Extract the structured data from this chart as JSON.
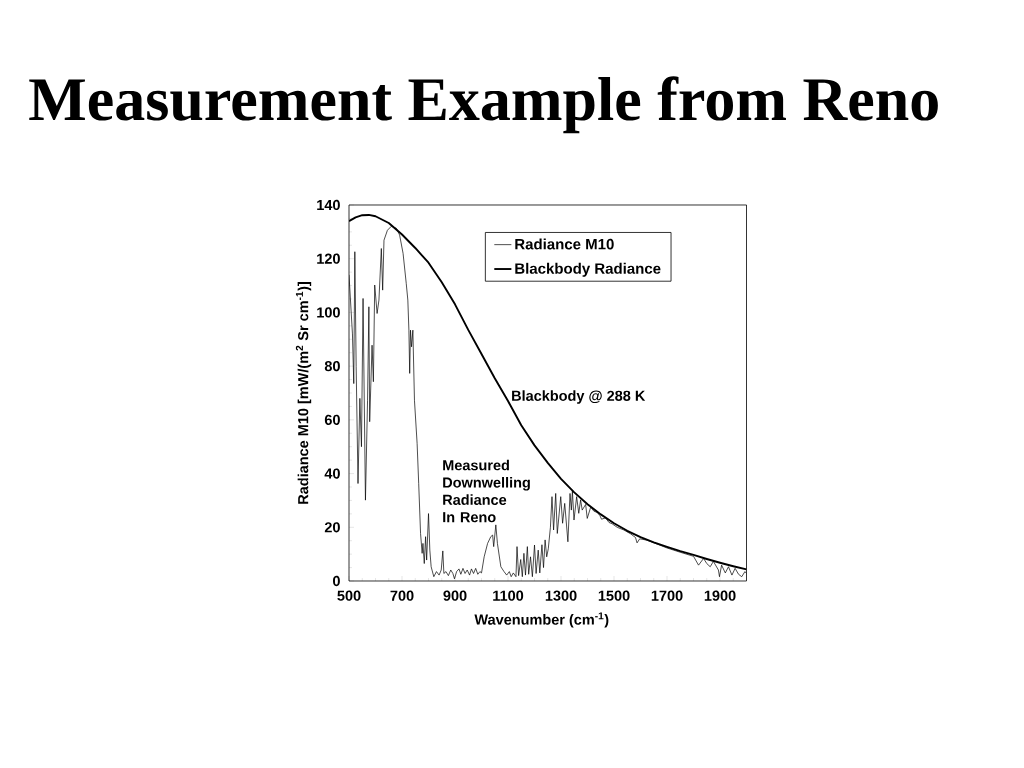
{
  "chart_data": {
    "type": "line",
    "title": "Measurement Example from Reno",
    "xlabel": "Wavenumber (cm$^{-1}$)",
    "ylabel": "Radiance M10 [mW/(m$^{2}$ Sr cm$^{-1}$)]",
    "xlim": [
      500,
      2000
    ],
    "ylim": [
      0,
      140
    ],
    "xticks": [
      500,
      {
        "value": 550,
        "label": null
      },
      {
        "value": 600,
        "label": null
      },
      {
        "value": 650,
        "label": null
      },
      700,
      {
        "value": 750,
        "label": null
      },
      {
        "value": 800,
        "label": null
      },
      {
        "value": 850,
        "label": null
      },
      900,
      {
        "value": 950,
        "label": null
      },
      {
        "value": 1000,
        "label": null
      },
      {
        "value": 1050,
        "label": null
      },
      1100,
      {
        "value": 1150,
        "label": null
      },
      {
        "value": 1200,
        "label": null
      },
      {
        "value": 1250,
        "label": null
      },
      1300,
      {
        "value": 1350,
        "label": null
      },
      {
        "value": 1400,
        "label": null
      },
      {
        "value": 1450,
        "label": null
      },
      1500,
      {
        "value": 1550,
        "label": null
      },
      {
        "value": 1600,
        "label": null
      },
      {
        "value": 1650,
        "label": null
      },
      1700,
      {
        "value": 1750,
        "label": null
      },
      {
        "value": 1800,
        "label": null
      },
      {
        "value": 1850,
        "label": null
      },
      1900,
      {
        "value": 1950,
        "label": null
      }
    ],
    "yticks": [
      0,
      {
        "value": 5,
        "label": null
      },
      {
        "value": 10,
        "label": null
      },
      {
        "value": 15,
        "label": null
      },
      20,
      {
        "value": 25,
        "label": null
      },
      {
        "value": 30,
        "label": null
      },
      {
        "value": 35,
        "label": null
      },
      40,
      {
        "value": 45,
        "label": null
      },
      {
        "value": 50,
        "label": null
      },
      {
        "value": 55,
        "label": null
      },
      60,
      {
        "value": 65,
        "label": null
      },
      {
        "value": 70,
        "label": null
      },
      {
        "value": 75,
        "label": null
      },
      80,
      {
        "value": 85,
        "label": null
      },
      {
        "value": 90,
        "label": null
      },
      {
        "value": 95,
        "label": null
      },
      100,
      {
        "value": 105,
        "label": null
      },
      {
        "value": 110,
        "label": null
      },
      {
        "value": 115,
        "label": null
      },
      120,
      {
        "value": 125,
        "label": null
      },
      {
        "value": 130,
        "label": null
      },
      {
        "value": 135,
        "label": null
      },
      140
    ],
    "legend": "top right",
    "series": [
      {
        "name": "Radiance M10",
        "color": "#000000",
        "x": [
          500,
          513,
          518,
          522,
          527,
          534,
          541,
          547,
          553,
          562,
          570,
          575,
          578,
          587,
          592,
          597,
          606,
          613,
          622,
          627,
          632,
          645,
          660,
          679,
          691,
          704,
          716,
          722,
          726,
          729,
          732,
          736,
          741,
          747,
          757,
          763,
          770,
          776,
          779,
          784,
          789,
          793,
          800,
          805,
          810,
          820,
          830,
          840,
          848,
          854,
          858,
          866,
          875,
          884,
          892,
          898,
          906,
          915,
          922,
          930,
          938,
          946,
          955,
          962,
          970,
          978,
          986,
          994,
          1000,
          1010,
          1023,
          1035,
          1042,
          1046,
          1054,
          1060,
          1073,
          1085,
          1095,
          1105,
          1112,
          1120,
          1130,
          1134,
          1140,
          1148,
          1154,
          1160,
          1166,
          1173,
          1178,
          1185,
          1192,
          1200,
          1206,
          1214,
          1220,
          1228,
          1234,
          1240,
          1246,
          1252,
          1260,
          1266,
          1272,
          1280,
          1286,
          1299,
          1306,
          1314,
          1326,
          1334,
          1339,
          1343,
          1349,
          1359,
          1367,
          1374,
          1380,
          1393,
          1399,
          1412,
          1424,
          1437,
          1447,
          1453,
          1468,
          1481,
          1493,
          1512,
          1537,
          1562,
          1581,
          1587,
          1597,
          1625,
          1656,
          1700,
          1750,
          1800,
          1819,
          1838,
          1850,
          1863,
          1875,
          1894,
          1898,
          1906,
          1920,
          1932,
          1945,
          1957,
          1970,
          1982,
          1994,
          2000
        ],
        "values": [
          114,
          92,
          73.5,
          122.6,
          79.8,
          36.3,
          68,
          50,
          105.2,
          30.1,
          67.3,
          102.1,
          59.3,
          87.8,
          74.2,
          110.2,
          99.6,
          104.6,
          123.8,
          108.3,
          126.9,
          130.6,
          132.1,
          131.3,
          128.8,
          122,
          110.8,
          104.6,
          93.4,
          77.3,
          93.4,
          87.2,
          93.4,
          67.3,
          51.2,
          36.3,
          17.7,
          10.3,
          14,
          6.5,
          16.5,
          7.8,
          25.1,
          11.5,
          5.3,
          1.6,
          3.5,
          2.2,
          4.1,
          11.2,
          2.8,
          3.5,
          2,
          4.1,
          2.8,
          0.8,
          3.5,
          4.5,
          2.5,
          4.7,
          2.8,
          4.1,
          2.2,
          4.5,
          2.8,
          4.7,
          2.5,
          3.5,
          3,
          9,
          14,
          16.5,
          17.1,
          12.8,
          20.9,
          14,
          5.3,
          3.5,
          2.2,
          3.5,
          1.6,
          3,
          1.6,
          12.8,
          2,
          8,
          1.6,
          10.3,
          2.2,
          12.8,
          2.5,
          9,
          1.6,
          13.4,
          2.8,
          11.5,
          3,
          13.5,
          5,
          15.3,
          9,
          12,
          20,
          31.4,
          19,
          32.6,
          17.7,
          31.4,
          21.5,
          28.9,
          14.6,
          32.6,
          26.4,
          33.5,
          22.7,
          31.4,
          25.2,
          30.2,
          26.4,
          28.5,
          23.3,
          27.5,
          26,
          25.5,
          24.3,
          23,
          23.5,
          21.8,
          21.3,
          20,
          19,
          17.6,
          16.2,
          14.2,
          15.7,
          15.2,
          14,
          12.3,
          10.7,
          9.2,
          5.9,
          8.4,
          6.5,
          5.3,
          7.3,
          4.1,
          1.6,
          5.9,
          3,
          5.3,
          2.2,
          4.7,
          2.5,
          1.6,
          3.5,
          2.8
        ]
      },
      {
        "name": "Blackbody Radiance",
        "color": "#000000",
        "x": [
          500,
          525,
          550,
          575,
          600,
          650,
          700,
          750,
          800,
          850,
          900,
          950,
          1000,
          1050,
          1100,
          1150,
          1200,
          1250,
          1300,
          1350,
          1400,
          1450,
          1500,
          1550,
          1600,
          1650,
          1700,
          1750,
          1800,
          1850,
          1900,
          1950,
          2000
        ],
        "values": [
          134,
          135.4,
          136.2,
          136.3,
          135.8,
          133.3,
          129,
          124,
          118.5,
          111.2,
          103,
          93.5,
          84.5,
          75.5,
          67,
          58,
          50.5,
          44,
          38,
          33,
          28.6,
          24.8,
          21.5,
          18.7,
          16.3,
          14.4,
          12.7,
          11.1,
          9.7,
          8.2,
          6.8,
          5.5,
          4.3
        ]
      }
    ],
    "annotations": [
      {
        "text": "Blackbody @ 288 K",
        "x": 1111,
        "y": 68.5
      },
      "Measured\nDownwelling\nRadiance\nIn Reno"
    ]
  }
}
